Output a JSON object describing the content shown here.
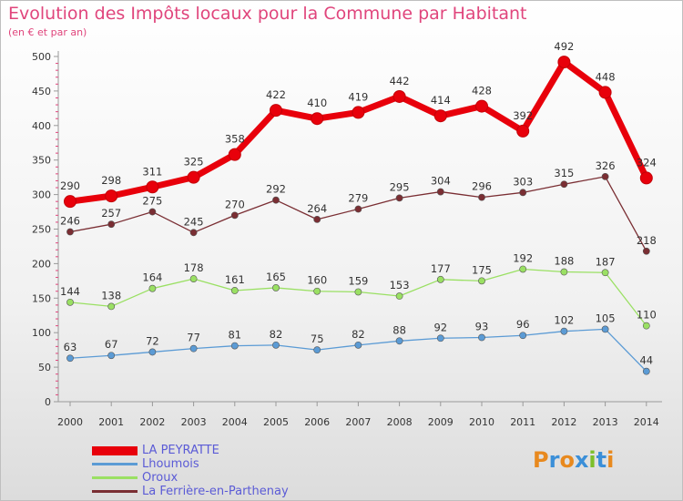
{
  "title": "Evolution des Impôts locaux pour la Commune par Habitant",
  "subtitle": "(en € et par an)",
  "logo": {
    "text": "Proxiti",
    "colors": [
      "#e8891e",
      "#3b8fd8",
      "#e8891e",
      "#3b8fd8",
      "#7cbf2a",
      "#3b8fd8",
      "#e8891e"
    ]
  },
  "chart_data": {
    "type": "line",
    "x": [
      "2000",
      "2001",
      "2002",
      "2003",
      "2004",
      "2005",
      "2006",
      "2007",
      "2008",
      "2009",
      "2010",
      "2011",
      "2012",
      "2013",
      "2014"
    ],
    "ylim": [
      0,
      500
    ],
    "yticks": [
      0,
      50,
      100,
      150,
      200,
      250,
      300,
      350,
      400,
      450,
      500
    ],
    "grid": false,
    "legend_position": "bottom-left",
    "series": [
      {
        "name": "LA PEYRATTE",
        "color": "#e8000b",
        "values": [
          290,
          298,
          311,
          325,
          358,
          422,
          410,
          419,
          442,
          414,
          428,
          392,
          492,
          448,
          324
        ]
      },
      {
        "name": "Lhoumois",
        "color": "#5b9bd5",
        "values": [
          63,
          67,
          72,
          77,
          81,
          82,
          75,
          82,
          88,
          92,
          93,
          96,
          102,
          105,
          44
        ]
      },
      {
        "name": "Oroux",
        "color": "#9ae063",
        "values": [
          144,
          138,
          164,
          178,
          161,
          165,
          160,
          159,
          153,
          177,
          175,
          192,
          188,
          187,
          110
        ]
      },
      {
        "name": "La Ferrière-en-Parthenay",
        "color": "#7a2e33",
        "values": [
          246,
          257,
          275,
          245,
          270,
          292,
          264,
          279,
          295,
          304,
          296,
          303,
          315,
          326,
          218
        ]
      }
    ]
  }
}
